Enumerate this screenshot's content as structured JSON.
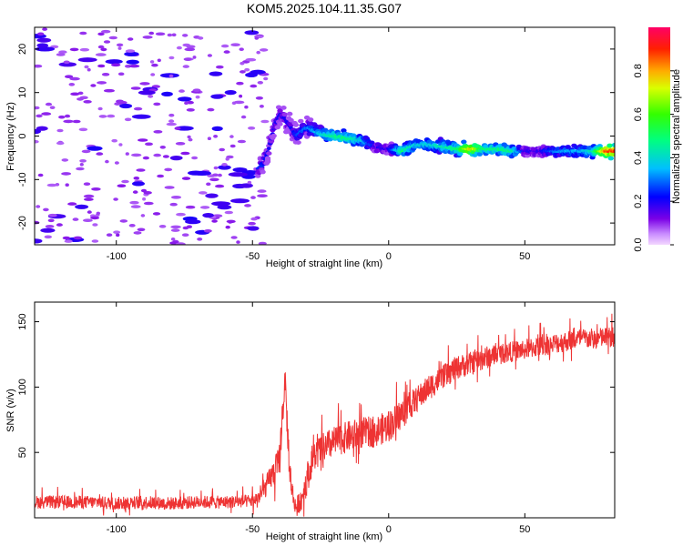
{
  "title": "KOM5.2025.104.11.35.G07",
  "colors": {
    "snr_line": "#ee3333",
    "axes": "#000000"
  },
  "chart_data": [
    {
      "type": "heatmap",
      "title": "KOM5.2025.104.11.35.G07",
      "xlabel": "Height of straight line (km)",
      "ylabel": "Frequency (Hz)",
      "xlim": [
        -130,
        83
      ],
      "ylim": [
        -25,
        25
      ],
      "x_ticks": [
        -100,
        -50,
        0,
        50
      ],
      "y_ticks": [
        -20,
        -10,
        0,
        10,
        20
      ],
      "grid": false,
      "colorbar": {
        "label": "Normalized spectral amplitude",
        "range": [
          0,
          1
        ],
        "ticks": [
          0.0,
          0.2,
          0.4,
          0.6,
          0.8
        ],
        "colormap": "rainbow (violet to red)"
      },
      "ridge": {
        "x": [
          -48,
          -46,
          -44,
          -42,
          -40,
          -38,
          -36,
          -34,
          -32,
          -30,
          -28,
          -25,
          -20,
          -15,
          -10,
          -5,
          0,
          5,
          10,
          15,
          20,
          25,
          30,
          35,
          40,
          45,
          50,
          55,
          60,
          65,
          70,
          75,
          80,
          83
        ],
        "frequency": [
          -7.5,
          -6.5,
          -3,
          2,
          5,
          4,
          2,
          0,
          1,
          2,
          1.5,
          0.5,
          0,
          -0.5,
          -1,
          -2.5,
          -3,
          -3.5,
          -2,
          -2,
          -2.5,
          -3,
          -3,
          -3,
          -3,
          -3.5,
          -3.5,
          -3.5,
          -3.5,
          -3.5,
          -3.5,
          -3.5,
          -3.5,
          -3.5
        ],
        "amplitude": [
          0.25,
          0.25,
          0.2,
          0.2,
          0.2,
          0.2,
          0.2,
          0.25,
          0.3,
          0.3,
          0.35,
          0.4,
          0.5,
          0.5,
          0.4,
          0.2,
          0.2,
          0.5,
          0.4,
          0.4,
          0.45,
          0.5,
          0.8,
          0.5,
          0.5,
          0.5,
          0.2,
          0.2,
          0.3,
          0.35,
          0.35,
          0.45,
          0.9,
          0.9
        ]
      },
      "noise": {
        "x_range": [
          -130,
          -45
        ],
        "frequency_range": [
          -25,
          25
        ],
        "amplitude": 0.1
      }
    },
    {
      "type": "line",
      "xlabel": "Height of straight line (km)",
      "ylabel": "SNR (v/v)",
      "xlim": [
        -130,
        83
      ],
      "ylim": [
        0,
        165
      ],
      "x_ticks": [
        -100,
        -50,
        0,
        50
      ],
      "y_ticks": [
        50,
        100,
        150
      ],
      "grid": false,
      "series": [
        {
          "x": [
            -130,
            -120,
            -110,
            -100,
            -90,
            -80,
            -70,
            -60,
            -50,
            -47,
            -45,
            -43,
            -41,
            -40,
            -39,
            -38,
            -37,
            -36,
            -35,
            -34,
            -32,
            -30,
            -28,
            -25,
            -20,
            -15,
            -10,
            -5,
            0,
            5,
            10,
            15,
            20,
            25,
            30,
            35,
            40,
            45,
            50,
            55,
            60,
            65,
            70,
            75,
            80,
            83
          ],
          "values": [
            12,
            12,
            12,
            11,
            12,
            11,
            12,
            12,
            13,
            17,
            24,
            32,
            38,
            45,
            80,
            106,
            60,
            30,
            15,
            8,
            15,
            30,
            45,
            52,
            58,
            62,
            65,
            66,
            70,
            80,
            90,
            100,
            108,
            115,
            118,
            122,
            125,
            127,
            129,
            131,
            133,
            135,
            137,
            137,
            138,
            138
          ],
          "noise": [
            5,
            5,
            5,
            5,
            5,
            5,
            5,
            5,
            5,
            6,
            8,
            10,
            12,
            14,
            16,
            8,
            16,
            12,
            8,
            6,
            10,
            12,
            12,
            12,
            12,
            12,
            12,
            12,
            12,
            12,
            10,
            10,
            9,
            9,
            9,
            9,
            8,
            8,
            8,
            8,
            8,
            8,
            8,
            8,
            8,
            8
          ]
        }
      ]
    }
  ]
}
